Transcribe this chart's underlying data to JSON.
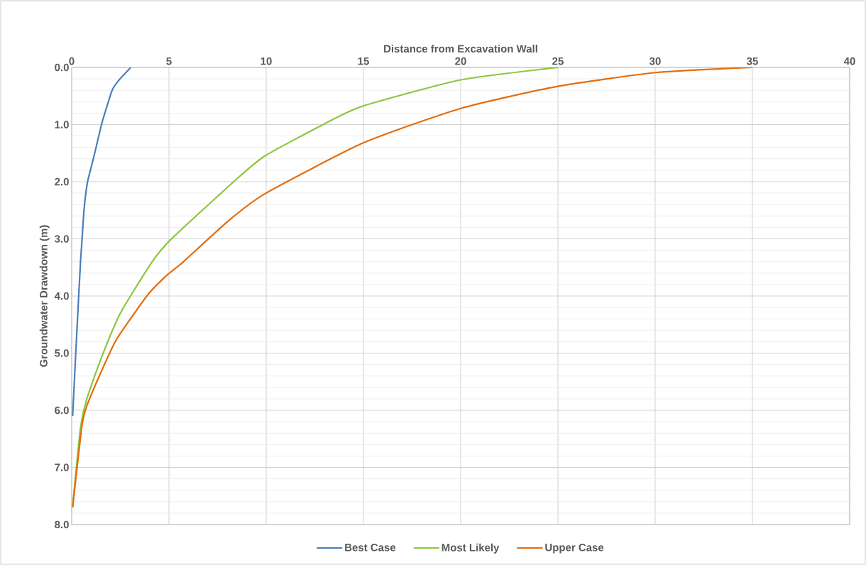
{
  "chart_data": {
    "type": "line",
    "xlabel": "Distance from Excavation Wall",
    "ylabel": "Groundwater Drawdown (m)",
    "xlim": [
      0,
      40
    ],
    "ylim": [
      8,
      0
    ],
    "xticks": [
      0,
      5,
      10,
      15,
      20,
      25,
      30,
      35,
      40
    ],
    "yticks": [
      {
        "value": 0,
        "label": "0.0"
      },
      {
        "value": 0.2,
        "label": null
      },
      {
        "value": 0.4,
        "label": null
      },
      {
        "value": 0.6,
        "label": null
      },
      {
        "value": 0.8,
        "label": null
      },
      {
        "value": 1,
        "label": "1.0"
      },
      {
        "value": 1.2,
        "label": null
      },
      {
        "value": 1.4,
        "label": null
      },
      {
        "value": 1.6,
        "label": null
      },
      {
        "value": 1.8,
        "label": null
      },
      {
        "value": 2,
        "label": "2.0"
      },
      {
        "value": 2.2,
        "label": null
      },
      {
        "value": 2.4,
        "label": null
      },
      {
        "value": 2.6,
        "label": null
      },
      {
        "value": 2.8,
        "label": null
      },
      {
        "value": 3,
        "label": "3.0"
      },
      {
        "value": 3.2,
        "label": null
      },
      {
        "value": 3.4,
        "label": null
      },
      {
        "value": 3.6,
        "label": null
      },
      {
        "value": 3.8,
        "label": null
      },
      {
        "value": 4,
        "label": "4.0"
      },
      {
        "value": 4.2,
        "label": null
      },
      {
        "value": 4.4,
        "label": null
      },
      {
        "value": 4.6,
        "label": null
      },
      {
        "value": 4.8,
        "label": null
      },
      {
        "value": 5,
        "label": "5.0"
      },
      {
        "value": 5.2,
        "label": null
      },
      {
        "value": 5.4,
        "label": null
      },
      {
        "value": 5.6,
        "label": null
      },
      {
        "value": 5.8,
        "label": null
      },
      {
        "value": 6,
        "label": "6.0"
      },
      {
        "value": 6.2,
        "label": null
      },
      {
        "value": 6.4,
        "label": null
      },
      {
        "value": 6.6,
        "label": null
      },
      {
        "value": 6.8,
        "label": null
      },
      {
        "value": 7,
        "label": "7.0"
      },
      {
        "value": 7.2,
        "label": null
      },
      {
        "value": 7.4,
        "label": null
      },
      {
        "value": 7.6,
        "label": null
      },
      {
        "value": 7.8,
        "label": null
      },
      {
        "value": 8,
        "label": "8.0"
      }
    ],
    "grid": true,
    "legend": "bottom",
    "series": [
      {
        "name": "Best Case",
        "color": "#4a7ebb",
        "x": [
          3.04,
          2.46,
          2.09,
          1.85,
          1.54,
          1.12,
          0.81,
          0.63,
          0.51,
          0.45,
          0.21,
          0.05
        ],
        "values": [
          0,
          0.21,
          0.39,
          0.64,
          0.99,
          1.59,
          2.01,
          2.51,
          3.13,
          3.42,
          4.99,
          6.1
        ]
      },
      {
        "name": "Most Likely",
        "color": "#8cc63f",
        "x": [
          25.0,
          19.97,
          14.93,
          12.98,
          9.93,
          8.36,
          5.07,
          4.1,
          2.52,
          1.54,
          0.76,
          0.45,
          0.05
        ],
        "values": [
          0,
          0.22,
          0.68,
          0.99,
          1.55,
          1.99,
          3.02,
          3.42,
          4.29,
          5.07,
          5.82,
          6.31,
          7.68
        ]
      },
      {
        "name": "Upper Case",
        "color": "#e46c0a",
        "x": [
          35.0,
          30.03,
          25.0,
          19.98,
          14.93,
          9.94,
          8.11,
          5.68,
          4.95,
          3.98,
          3.25,
          2.27,
          1.42,
          0.76,
          0.51,
          0.05
        ],
        "values": [
          0,
          0.09,
          0.33,
          0.72,
          1.33,
          2.21,
          2.67,
          3.42,
          3.62,
          3.95,
          4.29,
          4.78,
          5.4,
          5.94,
          6.31,
          7.7
        ]
      }
    ]
  }
}
